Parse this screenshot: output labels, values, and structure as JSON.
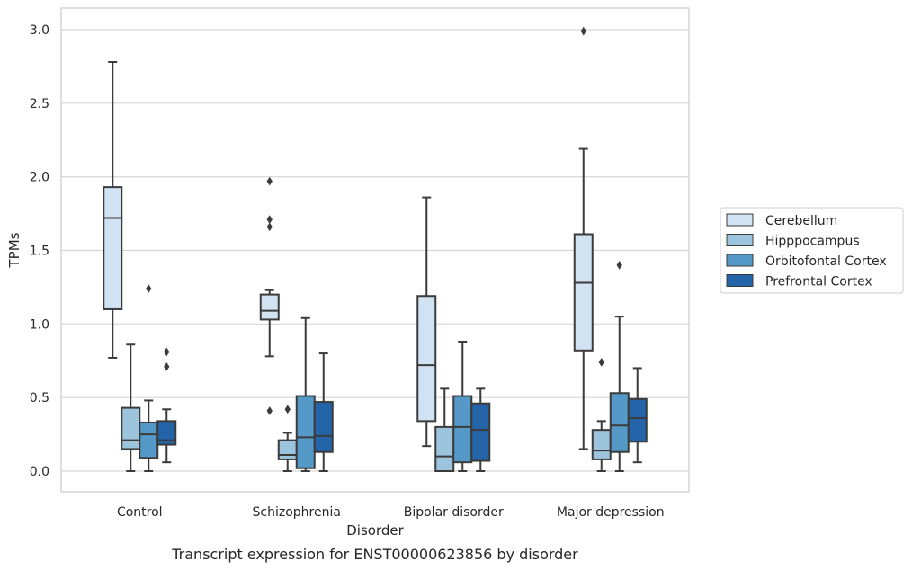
{
  "chart_data": {
    "type": "box",
    "title": "Transcript expression for ENST00000623856 by disorder",
    "xlabel": "Disorder",
    "ylabel": "TPMs",
    "ylim": [
      -0.15,
      3.15
    ],
    "yticks": [
      "0.0",
      "0.5",
      "1.0",
      "1.5",
      "2.0",
      "2.5",
      "3.0"
    ],
    "grid": true,
    "legend_position": "right",
    "categories": [
      "Control",
      "Schizophrenia",
      "Bipolar disorder",
      "Major depression"
    ],
    "series": [
      {
        "name": "Cerebellum",
        "color": "#d1e2f2",
        "boxes": [
          {
            "whisker_low": 0.77,
            "q1": 1.1,
            "median": 1.72,
            "q3": 1.93,
            "whisker_high": 2.78,
            "outliers": []
          },
          {
            "whisker_low": 0.78,
            "q1": 1.03,
            "median": 1.09,
            "q3": 1.2,
            "whisker_high": 1.23,
            "outliers": [
              1.97,
              1.71,
              1.66,
              0.41
            ]
          },
          {
            "whisker_low": 0.17,
            "q1": 0.34,
            "median": 0.72,
            "q3": 1.19,
            "whisker_high": 1.86,
            "outliers": []
          },
          {
            "whisker_low": 0.15,
            "q1": 0.82,
            "median": 1.28,
            "q3": 1.61,
            "whisker_high": 2.19,
            "outliers": [
              2.99
            ]
          }
        ]
      },
      {
        "name": "Hipppocampus",
        "color": "#9dc4dd",
        "boxes": [
          {
            "whisker_low": 0.0,
            "q1": 0.15,
            "median": 0.21,
            "q3": 0.43,
            "whisker_high": 0.86,
            "outliers": []
          },
          {
            "whisker_low": 0.0,
            "q1": 0.08,
            "median": 0.11,
            "q3": 0.21,
            "whisker_high": 0.26,
            "outliers": [
              0.42
            ]
          },
          {
            "whisker_low": 0.0,
            "q1": 0.0,
            "median": 0.1,
            "q3": 0.3,
            "whisker_high": 0.56,
            "outliers": []
          },
          {
            "whisker_low": 0.0,
            "q1": 0.08,
            "median": 0.14,
            "q3": 0.28,
            "whisker_high": 0.34,
            "outliers": [
              0.74
            ]
          }
        ]
      },
      {
        "name": "Orbitofontal Cortex",
        "color": "#5499c7",
        "boxes": [
          {
            "whisker_low": 0.0,
            "q1": 0.09,
            "median": 0.25,
            "q3": 0.33,
            "whisker_high": 0.48,
            "outliers": [
              1.24
            ]
          },
          {
            "whisker_low": 0.0,
            "q1": 0.02,
            "median": 0.23,
            "q3": 0.51,
            "whisker_high": 1.04,
            "outliers": []
          },
          {
            "whisker_low": 0.0,
            "q1": 0.06,
            "median": 0.3,
            "q3": 0.51,
            "whisker_high": 0.88,
            "outliers": []
          },
          {
            "whisker_low": 0.0,
            "q1": 0.13,
            "median": 0.31,
            "q3": 0.53,
            "whisker_high": 1.05,
            "outliers": [
              1.4
            ]
          }
        ]
      },
      {
        "name": "Prefrontal Cortex",
        "color": "#2464a8",
        "boxes": [
          {
            "whisker_low": 0.06,
            "q1": 0.18,
            "median": 0.21,
            "q3": 0.34,
            "whisker_high": 0.42,
            "outliers": [
              0.81,
              0.71
            ]
          },
          {
            "whisker_low": 0.0,
            "q1": 0.13,
            "median": 0.24,
            "q3": 0.47,
            "whisker_high": 0.8,
            "outliers": []
          },
          {
            "whisker_low": 0.0,
            "q1": 0.07,
            "median": 0.28,
            "q3": 0.46,
            "whisker_high": 0.56,
            "outliers": []
          },
          {
            "whisker_low": 0.06,
            "q1": 0.2,
            "median": 0.36,
            "q3": 0.49,
            "whisker_high": 0.7,
            "outliers": []
          }
        ]
      }
    ]
  }
}
